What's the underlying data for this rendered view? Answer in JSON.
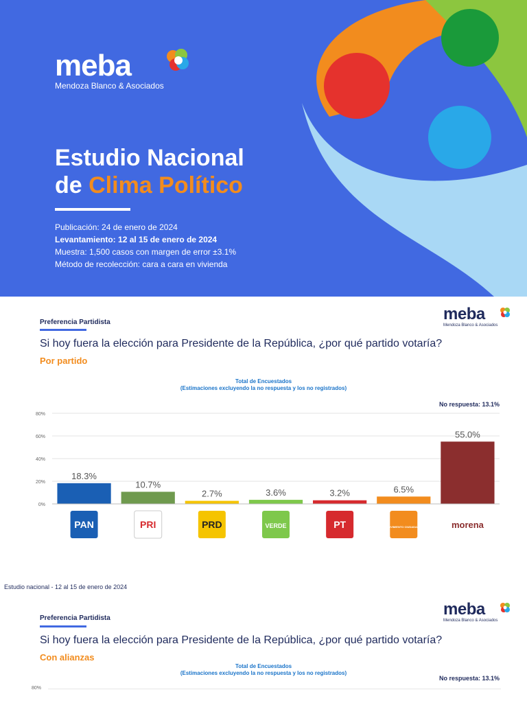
{
  "cover": {
    "brand_name": "meba",
    "brand_subtitle": "Mendoza Blanco & Asociados",
    "title_line1": "Estudio Nacional",
    "title_line2_prefix": "de ",
    "title_line2_accent": "Clima Político",
    "publication": "Publicación: 24 de enero de 2024",
    "fieldwork": "Levantamiento: 12 al 15 de enero de 2024",
    "sample": "Muestra: 1,500 casos con margen de error ±3.1%",
    "method": "Método de recolección: cara a cara en vivienda"
  },
  "slide1": {
    "section": "Preferencia Partidista",
    "question": "Si hoy fuera la elección para Presidente de la República, ¿por qué partido votaría?",
    "subtitle": "Por partido",
    "chart_title_line1": "Total de Encuestados",
    "chart_title_line2": "(Estimaciones excluyendo la no respuesta y los no registrados)",
    "no_response": "No respuesta: 13.1%"
  },
  "footer": "Estudio nacional - 12 al 15 de enero de 2024",
  "slide2": {
    "section": "Preferencia Partidista",
    "question": "Si hoy fuera la elección para Presidente de la República, ¿por qué partido votaría?",
    "subtitle": "Con alianzas",
    "chart_title_line1": "Total de Encuestados",
    "chart_title_line2": "(Estimaciones excluyendo la no respuesta y los no registrados)",
    "no_response": "No respuesta: 13.1%",
    "axis_top": "80%"
  },
  "logo_small": {
    "name": "meba",
    "subtitle": "Mendoza Blanco & Asociados"
  },
  "chart_data": {
    "type": "bar",
    "categories": [
      "PAN",
      "PRI",
      "PRD",
      "VERDE",
      "PT",
      "MC",
      "morena"
    ],
    "values": [
      18.3,
      10.7,
      2.7,
      3.6,
      3.2,
      6.5,
      55.0
    ],
    "value_labels": [
      "18.3%",
      "10.7%",
      "2.7%",
      "3.6%",
      "3.2%",
      "6.5%",
      "55.0%"
    ],
    "ylim": [
      0,
      80
    ],
    "yticks": [
      "0%",
      "20%",
      "40%",
      "60%",
      "80%"
    ],
    "colors": [
      "#1a5fb4",
      "#6f9a4e",
      "#f5c400",
      "#7ec84b",
      "#d62a2e",
      "#f28c1e",
      "#8b2e2e"
    ],
    "logo_labels": [
      "PAN",
      "PRI",
      "PRD",
      "VERDE",
      "PT",
      "MOVIMIENTO CIUDADANO",
      "morena"
    ],
    "grid": true
  }
}
